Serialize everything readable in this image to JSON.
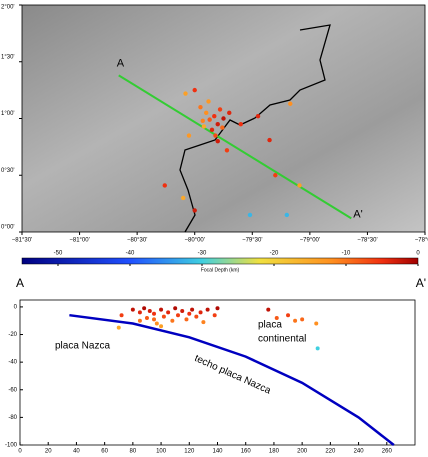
{
  "chart_data": [
    {
      "type": "map",
      "xlim": [
        -81.5,
        -78.0
      ],
      "ylim": [
        0,
        2
      ],
      "xticks": [
        {
          "value": -81.5,
          "label": "−81°30'"
        },
        {
          "value": -81,
          "label": "−81°00'"
        },
        {
          "value": -80.5,
          "label": "−80°30'"
        },
        {
          "value": -80,
          "label": "−80°00'"
        },
        {
          "value": -79.5,
          "label": "−79°30'"
        },
        {
          "value": -79,
          "label": "−79°00'"
        },
        {
          "value": -78.5,
          "label": "−78°30'"
        },
        {
          "value": -78,
          "label": "−78°00'"
        }
      ],
      "yticks": [
        {
          "value": 0,
          "label": "0°00'"
        },
        {
          "value": 0.5,
          "label": "0°30'"
        },
        {
          "value": 1,
          "label": "1°00'"
        },
        {
          "value": 1.5,
          "label": "1°30'"
        },
        {
          "value": 2,
          "label": "2°00'"
        }
      ],
      "profile": {
        "x": [
          -80.66,
          -78.64
        ],
        "values": [
          1.38,
          0.12
        ],
        "color": "#33cc33",
        "start_label": "A",
        "end_label": "A'"
      },
      "x": [
        -79.87,
        -79.83,
        -79.8,
        -79.9,
        -79.78,
        -79.85,
        -79.92,
        -79.75,
        -79.82,
        -79.95,
        -79.7,
        -79.88,
        -79.8,
        -79.76,
        -79.93,
        -80.08,
        -80.0,
        -79.17,
        -79.35,
        -79.3,
        -79.09,
        -80.0,
        -80.26,
        -79.52,
        -79.2,
        -80.1,
        -79.6,
        -79.45,
        -80.05,
        -79.72
      ],
      "values": [
        0.99,
        1.02,
        0.95,
        1.05,
        1.08,
        0.9,
        0.93,
        1.0,
        0.85,
        1.1,
        1.05,
        1.15,
        0.8,
        0.92,
        0.98,
        1.22,
        1.25,
        1.13,
        0.81,
        0.5,
        0.41,
        0.19,
        0.41,
        0.15,
        0.15,
        0.3,
        0.95,
        1.02,
        0.85,
        0.72
      ],
      "depth": [
        -8,
        -5,
        -3,
        -12,
        -6,
        -4,
        -15,
        -2,
        -7,
        -10,
        -4,
        -13,
        -3,
        -9,
        -11,
        -14,
        -5,
        -12,
        -4,
        -6,
        -14,
        -3,
        -5,
        -32,
        -32,
        -15,
        -5,
        -4,
        -13,
        -6
      ]
    },
    {
      "type": "colorbar",
      "xlabel": "Focal Depth (km)",
      "xlim": [
        -55,
        0
      ],
      "xticks": [
        -50,
        -40,
        -30,
        -20,
        -10,
        0
      ],
      "colormap": [
        {
          "value": -55,
          "color": "#000080"
        },
        {
          "value": -40,
          "color": "#2050ff"
        },
        {
          "value": -30,
          "color": "#40d0e0"
        },
        {
          "value": -22,
          "color": "#f0e040"
        },
        {
          "value": -12,
          "color": "#ff9020"
        },
        {
          "value": -5,
          "color": "#f03010"
        },
        {
          "value": 0,
          "color": "#a00000"
        }
      ],
      "start_label": "A",
      "end_label": "A'"
    },
    {
      "type": "section",
      "xlim": [
        0,
        280
      ],
      "ylim": [
        -100,
        5
      ],
      "xticks": [
        0,
        20,
        40,
        60,
        80,
        100,
        120,
        140,
        160,
        180,
        200,
        220,
        240,
        260
      ],
      "yticks": [
        0,
        -20,
        -40,
        -60,
        -80,
        -100
      ],
      "annotations": [
        "placa Nazca",
        "techo placa Nazca",
        "placa",
        "continental"
      ],
      "line": {
        "x": [
          35,
          80,
          120,
          160,
          200,
          240,
          265
        ],
        "values": [
          -6,
          -12,
          -22,
          -36,
          -55,
          -80,
          -100
        ],
        "color": "#0000c0"
      },
      "x": [
        70,
        72,
        80,
        85,
        88,
        90,
        92,
        95,
        97,
        100,
        102,
        105,
        108,
        110,
        112,
        115,
        118,
        120,
        122,
        125,
        128,
        130,
        133,
        138,
        140,
        100,
        95,
        85,
        176,
        182,
        190,
        195,
        200,
        210,
        211
      ],
      "values": [
        -15,
        -6,
        -2,
        -4,
        -1,
        -8,
        -3,
        -5,
        -12,
        -2,
        -7,
        -4,
        -10,
        -1,
        -6,
        -3,
        -9,
        -5,
        -2,
        -7,
        -4,
        -11,
        -2,
        -6,
        -1,
        -14,
        -9,
        -10,
        -2,
        -8,
        -6,
        -10,
        -9,
        -12,
        -30
      ]
    }
  ]
}
